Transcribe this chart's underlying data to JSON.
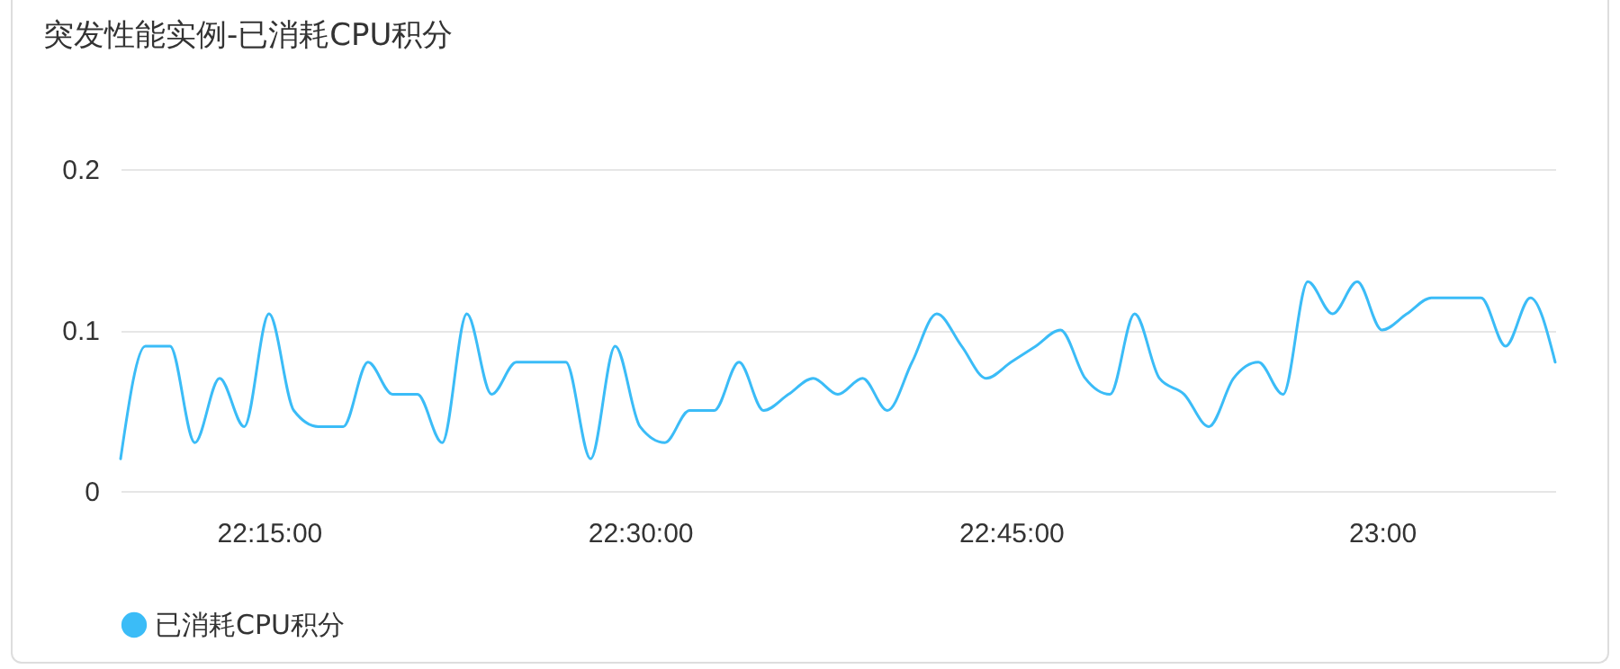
{
  "chart_data": {
    "type": "line",
    "title": "突发性能实例-已消耗CPU积分",
    "x": [
      22.15,
      22.1667,
      22.1833,
      22.2,
      22.2167,
      22.2333,
      22.25,
      22.2667,
      22.2833,
      22.3,
      22.3167,
      22.3333,
      22.35,
      22.3667,
      22.3833,
      22.4,
      22.4167,
      22.4333,
      22.45,
      22.4667,
      22.4833,
      22.5,
      22.5167,
      22.5333,
      22.55,
      22.5667,
      22.5833,
      22.6,
      22.6167,
      22.6333,
      22.65,
      22.6667,
      22.6833,
      22.7,
      22.7167,
      22.7333,
      22.75,
      22.7667,
      22.7833,
      22.8,
      22.8167,
      22.8333,
      22.85,
      22.8667,
      22.8833,
      22.9,
      22.9167,
      22.9333,
      22.95,
      22.9667,
      22.9833,
      23,
      23.0167,
      23.0333,
      23.05,
      23.0667,
      23.0833,
      23.1,
      23.1167
    ],
    "series": [
      {
        "name": "已消耗CPU积分",
        "color": "#3bbcf7",
        "values": [
          0.02,
          0.09,
          0.09,
          0.03,
          0.07,
          0.04,
          0.11,
          0.05,
          0.04,
          0.04,
          0.08,
          0.06,
          0.06,
          0.03,
          0.11,
          0.06,
          0.08,
          0.08,
          0.08,
          0.02,
          0.09,
          0.04,
          0.03,
          0.05,
          0.05,
          0.08,
          0.05,
          0.06,
          0.07,
          0.06,
          0.07,
          0.05,
          0.08,
          0.11,
          0.09,
          0.07,
          0.08,
          0.09,
          0.1,
          0.07,
          0.06,
          0.11,
          0.07,
          0.06,
          0.04,
          0.07,
          0.08,
          0.06,
          0.13,
          0.11,
          0.13,
          0.1,
          0.11,
          0.12,
          0.12,
          0.12,
          0.09,
          0.12,
          0.08
        ]
      }
    ],
    "xlim": [
      22.15,
      23.1167
    ],
    "xticks": [
      {
        "value": 22.25,
        "label": "22:15:00"
      },
      {
        "value": 22.5,
        "label": "22:30:00"
      },
      {
        "value": 22.75,
        "label": "22:45:00"
      },
      {
        "value": 23,
        "label": "23:00"
      }
    ],
    "ylim": [
      0,
      0.2
    ],
    "yticks": [
      0,
      0.1,
      0.2
    ],
    "grid": "y",
    "legend": "bottom",
    "marker": "none",
    "line_style": "solid"
  }
}
